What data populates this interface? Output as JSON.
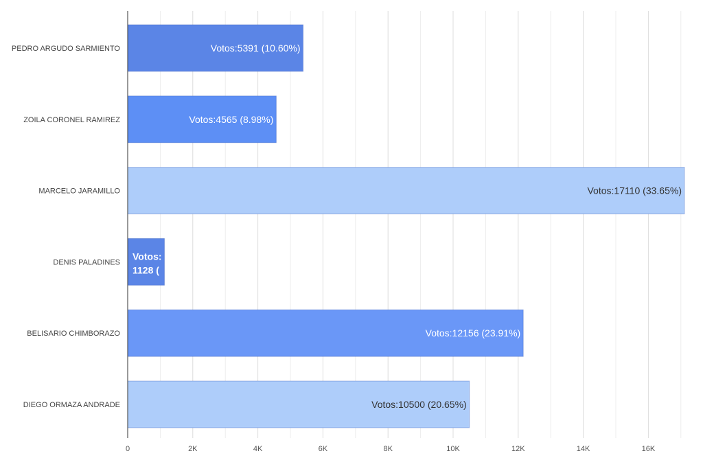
{
  "chart_data": {
    "type": "bar",
    "orientation": "horizontal",
    "categories": [
      "PEDRO ARGUDO SARMIENTO",
      "ZOILA CORONEL RAMIREZ",
      "MARCELO JARAMILLO",
      "DENIS PALADINES",
      "BELISARIO CHIMBORAZO",
      "DIEGO ORMAZA ANDRADE"
    ],
    "values": [
      5391,
      4565,
      17110,
      1128,
      12156,
      10500
    ],
    "data_labels": [
      "Votos:5391 (10.60%)",
      "Votos:4565 (8.98%)",
      "Votos:17110 (33.65%)",
      "Votos:\n1128 (",
      "Votos:12156 (23.91%)",
      "Votos:10500 (20.65%)"
    ],
    "bar_colors": [
      "#5b85e6",
      "#5d8ff5",
      "#aecdfa",
      "#5b85e6",
      "#6a97f7",
      "#aecdfa"
    ],
    "label_colors": [
      "#ffffff",
      "#ffffff",
      "#333333",
      "#ffffff",
      "#ffffff",
      "#333333"
    ],
    "x_ticks": [
      0,
      2000,
      4000,
      6000,
      8000,
      10000,
      12000,
      14000,
      16000
    ],
    "x_tick_labels": [
      "0",
      "2K",
      "4K",
      "6K",
      "8K",
      "10K",
      "12K",
      "14K",
      "16K"
    ],
    "xlim": [
      0,
      17110
    ],
    "minor_gridlines": true,
    "grid": true,
    "title": "",
    "xlabel": "",
    "ylabel": ""
  }
}
